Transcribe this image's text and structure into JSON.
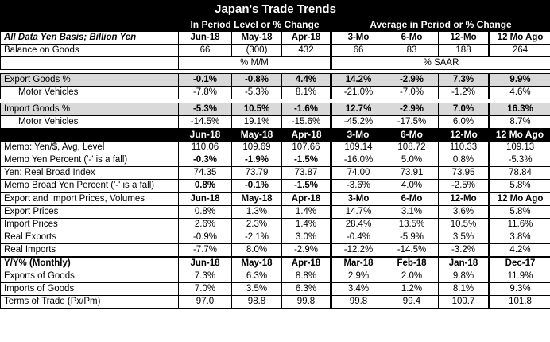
{
  "title": "Japan's Trade Trends",
  "band": {
    "left": "In Period Level or % Change",
    "right": "Average in Period or % Change"
  },
  "header1": {
    "label": "All Data Yen Basis; Billion Yen",
    "cols": [
      "Jun-18",
      "May-18",
      "Apr-18",
      "3-Mo",
      "6-Mo",
      "12-Mo",
      "12 Mo Ago"
    ]
  },
  "balance": {
    "label": "Balance on Goods",
    "vals": [
      "66",
      "(300)",
      "432",
      "66",
      "83",
      "188",
      "264"
    ]
  },
  "unit_row": {
    "mm": "% M/M",
    "saar": "% SAAR"
  },
  "export_goods": {
    "label": "Export Goods %",
    "vals": [
      "-0.1%",
      "-0.8%",
      "4.4%",
      "14.2%",
      "-2.9%",
      "7.3%",
      "9.9%"
    ]
  },
  "export_motor": {
    "label": "Motor Vehicles",
    "vals": [
      "-7.8%",
      "-5.3%",
      "8.1%",
      "-21.0%",
      "-7.0%",
      "-1.2%",
      "4.6%"
    ]
  },
  "import_goods": {
    "label": "Import Goods %",
    "vals": [
      "-5.3%",
      "10.5%",
      "-1.6%",
      "12.7%",
      "-2.9%",
      "7.0%",
      "16.3%"
    ]
  },
  "import_motor": {
    "label": "Motor Vehicles",
    "vals": [
      "-14.5%",
      "19.1%",
      "-15.6%",
      "-45.2%",
      "-17.5%",
      "6.0%",
      "8.7%"
    ]
  },
  "header2": {
    "cols": [
      "Jun-18",
      "May-18",
      "Apr-18",
      "3-Mo",
      "6-Mo",
      "12-Mo",
      "12 Mo Ago"
    ]
  },
  "memo_yen": {
    "label": "Memo: Yen/$, Avg, Level",
    "vals": [
      "110.06",
      "109.69",
      "107.66",
      "109.14",
      "108.72",
      "110.33",
      "109.13"
    ]
  },
  "memo_yen_pct": {
    "label": "Memo Yen Percent ('-' is a fall)",
    "vals": [
      "-0.3%",
      "-1.9%",
      "-1.5%",
      "-16.0%",
      "5.0%",
      "0.8%",
      "-5.3%"
    ]
  },
  "broad_index": {
    "label": "Yen: Real Broad Index",
    "vals": [
      "74.35",
      "73.79",
      "73.87",
      "74.00",
      "73.91",
      "73.95",
      "78.84"
    ]
  },
  "broad_pct": {
    "label": "Memo Broad Yen Percent ('-' is a fall)",
    "vals": [
      "0.8%",
      "-0.1%",
      "-1.5%",
      "-3.6%",
      "4.0%",
      "-2.5%",
      "5.8%"
    ]
  },
  "header3": {
    "label": "Export and Import Prices, Volumes",
    "cols": [
      "Jun-18",
      "May-18",
      "Apr-18",
      "3-Mo",
      "6-Mo",
      "12-Mo",
      "12 Mo Ago"
    ]
  },
  "export_prices": {
    "label": "Export Prices",
    "vals": [
      "0.8%",
      "1.3%",
      "1.4%",
      "14.7%",
      "3.1%",
      "3.6%",
      "5.8%"
    ]
  },
  "import_prices": {
    "label": "Import Prices",
    "vals": [
      "2.6%",
      "2.3%",
      "1.4%",
      "28.4%",
      "13.5%",
      "10.5%",
      "11.6%"
    ]
  },
  "real_exports": {
    "label": "Real Exports",
    "vals": [
      "-0.9%",
      "-2.1%",
      "3.0%",
      "-0.4%",
      "-5.9%",
      "3.5%",
      "3.8%"
    ]
  },
  "real_imports": {
    "label": "Real Imports",
    "vals": [
      "-7.7%",
      "8.0%",
      "-2.9%",
      "-12.2%",
      "-14.5%",
      "-3.2%",
      "4.2%"
    ]
  },
  "header4": {
    "label": "Y/Y% (Monthly)",
    "cols": [
      "Jun-18",
      "May-18",
      "Apr-18",
      "Mar-18",
      "Feb-18",
      "Jan-18",
      "Dec-17"
    ]
  },
  "yy_exports": {
    "label": "Exports of Goods",
    "vals": [
      "7.3%",
      "6.3%",
      "8.8%",
      "2.9%",
      "2.0%",
      "9.8%",
      "11.9%"
    ]
  },
  "yy_imports": {
    "label": "Imports of Goods",
    "vals": [
      "7.0%",
      "3.5%",
      "6.3%",
      "3.4%",
      "1.2%",
      "8.1%",
      "9.3%"
    ]
  },
  "terms": {
    "label": "Terms of Trade (Px/Pm)",
    "vals": [
      "97.0",
      "98.8",
      "99.8",
      "99.8",
      "99.4",
      "100.7",
      "101.8"
    ]
  }
}
